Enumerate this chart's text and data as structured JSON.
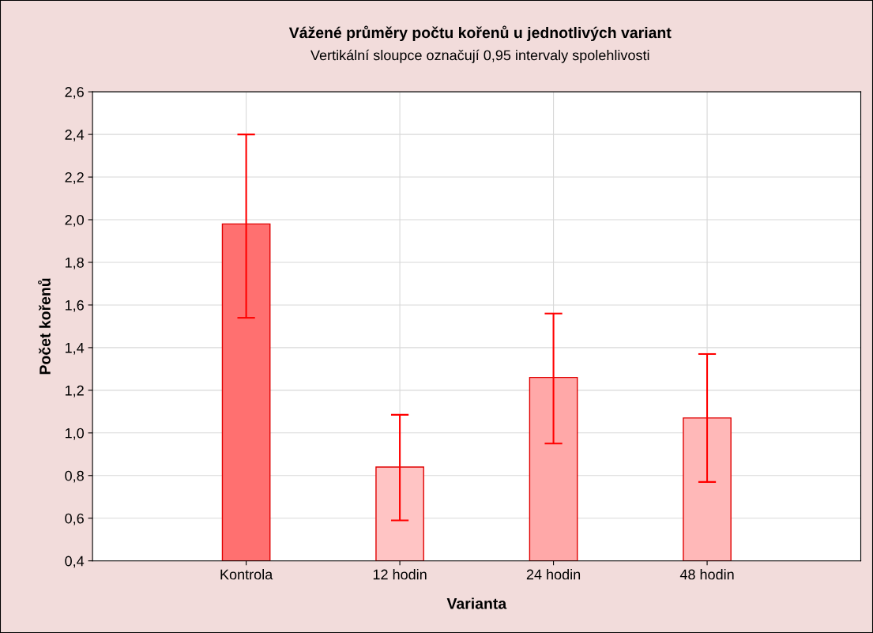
{
  "chart_data": {
    "type": "bar",
    "title": "Vážené průměry počtu kořenů u jednotlivých variant",
    "subtitle": "Vertikální sloupce označují 0,95 intervaly spolehlivosti",
    "xlabel": "Varianta",
    "ylabel": "Počet kořenů",
    "categories": [
      "Kontrola",
      "12 hodin",
      "24 hodin",
      "48 hodin"
    ],
    "values": [
      1.98,
      0.84,
      1.26,
      1.07
    ],
    "errors": [
      [
        1.54,
        2.4
      ],
      [
        0.59,
        1.085
      ],
      [
        0.95,
        1.56
      ],
      [
        0.77,
        1.37
      ]
    ],
    "colors": [
      "#ff7070",
      "#ffc4c4",
      "#ffa8a8",
      "#ffb8b8"
    ],
    "ylim": [
      0.4,
      2.6
    ],
    "yticks": [
      {
        "value": 0.4,
        "label": "0,4"
      },
      {
        "value": 0.6,
        "label": "0,6"
      },
      {
        "value": 0.8,
        "label": "0,8"
      },
      {
        "value": 1.0,
        "label": "1,0"
      },
      {
        "value": 1.2,
        "label": "1,2"
      },
      {
        "value": 1.4,
        "label": "1,4"
      },
      {
        "value": 1.6,
        "label": "1,6"
      },
      {
        "value": 1.8,
        "label": "1,8"
      },
      {
        "value": 2.0,
        "label": "2,0"
      },
      {
        "value": 2.2,
        "label": "2,2"
      },
      {
        "value": 2.4,
        "label": "2,4"
      },
      {
        "value": 2.6,
        "label": "2,6"
      }
    ],
    "grid": true
  }
}
